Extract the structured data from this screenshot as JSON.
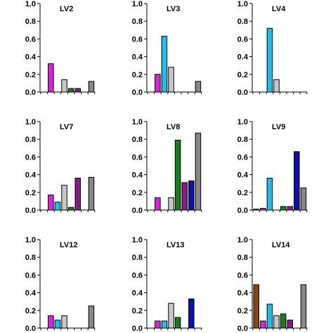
{
  "chart_data": [
    {
      "type": "bar",
      "title": "LV2",
      "ylim": [
        0,
        1.0
      ],
      "yticks": [
        "0.0",
        "0.2",
        "0.4",
        "0.6",
        "0.8",
        "1.0"
      ],
      "values": [
        0,
        0.32,
        0,
        0.14,
        0.04,
        0.04,
        0,
        0.12
      ]
    },
    {
      "type": "bar",
      "title": "LV3",
      "ylim": [
        0,
        1.0
      ],
      "yticks": [
        "0.0",
        "0.2",
        "0.4",
        "0.6",
        "0.8",
        "1.0"
      ],
      "values": [
        0,
        0.2,
        0.63,
        0.28,
        0,
        0,
        0,
        0.12
      ]
    },
    {
      "type": "bar",
      "title": "LV4",
      "ylim": [
        0,
        1.0
      ],
      "yticks": [
        "0.0",
        "0.2",
        "0.4",
        "0.6",
        "0.8",
        "1.0"
      ],
      "values": [
        0,
        0,
        0.72,
        0.14,
        0,
        0,
        0,
        0
      ]
    },
    {
      "type": "bar",
      "title": "LV7",
      "ylim": [
        0,
        1.0
      ],
      "yticks": [
        "0.0",
        "0.2",
        "0.4",
        "0.6",
        "0.8",
        "1.0"
      ],
      "values": [
        0,
        0.17,
        0.09,
        0.28,
        0.03,
        0.36,
        0,
        0.37
      ]
    },
    {
      "type": "bar",
      "title": "LV8",
      "ylim": [
        0,
        1.0
      ],
      "yticks": [
        "0.0",
        "0.2",
        "0.4",
        "0.6",
        "0.8",
        "1.0"
      ],
      "values": [
        0,
        0.14,
        0,
        0.14,
        0.79,
        0.31,
        0.33,
        0.87
      ]
    },
    {
      "type": "bar",
      "title": "LV9",
      "ylim": [
        0,
        1.0
      ],
      "yticks": [
        "0.0",
        "0.2",
        "0.4",
        "0.6",
        "0.8",
        "1.0"
      ],
      "values": [
        0.01,
        0.02,
        0.36,
        0,
        0.04,
        0.04,
        0.66,
        0.25
      ]
    },
    {
      "type": "bar",
      "title": "LV12",
      "ylim": [
        0,
        1.0
      ],
      "yticks": [
        "0.0",
        "0.2",
        "0.4",
        "0.6",
        "0.8",
        "1.0"
      ],
      "values": [
        0,
        0.14,
        0.09,
        0.14,
        0,
        0,
        0,
        0.25
      ]
    },
    {
      "type": "bar",
      "title": "LV13",
      "ylim": [
        0,
        1.0
      ],
      "yticks": [
        "0.0",
        "0.2",
        "0.4",
        "0.6",
        "0.8",
        "1.0"
      ],
      "values": [
        0,
        0.08,
        0.08,
        0.28,
        0.12,
        0,
        0.33,
        0
      ]
    },
    {
      "type": "bar",
      "title": "LV14",
      "ylim": [
        0,
        1.0
      ],
      "yticks": [
        "0.0",
        "0.2",
        "0.4",
        "0.6",
        "0.8",
        "1.0"
      ],
      "values": [
        0.49,
        0.08,
        0.27,
        0.14,
        0.16,
        0.09,
        0,
        0.49
      ]
    }
  ],
  "bar_colors": [
    "#8B4513",
    "#E020E0",
    "#1CC0EC",
    "#C8C8C8",
    "#1E7A1E",
    "#8A1A8A",
    "#1010B0",
    "#888888"
  ]
}
